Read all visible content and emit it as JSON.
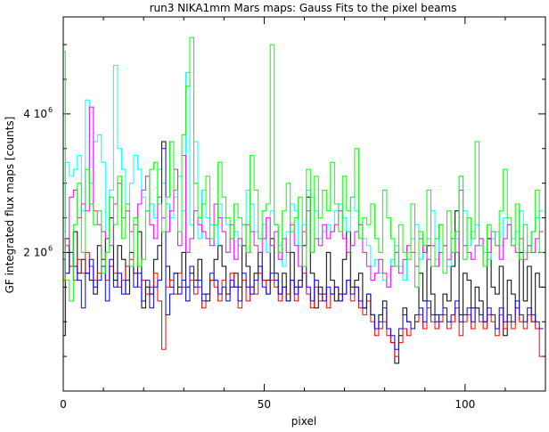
{
  "chart_data": {
    "type": "line",
    "title": "run3 NIKA1mm Mars maps: Gauss Fits to the pixel beams",
    "xlabel": "pixel",
    "ylabel": "GF integrated flux maps [counts]",
    "xlim": [
      0,
      120
    ],
    "ylim": [
      0,
      5400000
    ],
    "step": true,
    "grid": false,
    "x_ticks": [
      0,
      50,
      100
    ],
    "x_tick_labels": [
      "0",
      "50",
      "100"
    ],
    "y_ticks": [
      2000000,
      4000000
    ],
    "y_tick_labels": [
      "2 10",
      "4 10"
    ],
    "y_tick_exponent": "6",
    "series": [
      {
        "color": "#000000",
        "values": [
          800000,
          2200000,
          1800000,
          2300000,
          1700000,
          1900000,
          1700000,
          1600000,
          1400000,
          2100000,
          1900000,
          2200000,
          2500000,
          1600000,
          2100000,
          1900000,
          1400000,
          2000000,
          1700000,
          2300000,
          1200000,
          1500000,
          1400000,
          1900000,
          2100000,
          3600000,
          1800000,
          1500000,
          1700000,
          1500000,
          2000000,
          1500000,
          1700000,
          1600000,
          1900000,
          1400000,
          1300000,
          1600000,
          1900000,
          2100000,
          1800000,
          1400000,
          1500000,
          1700000,
          1500000,
          2100000,
          1800000,
          1500000,
          1700000,
          2000000,
          1600000,
          1600000,
          2200000,
          1700000,
          1400000,
          1700000,
          1300000,
          2000000,
          1500000,
          1600000,
          2100000,
          2800000,
          1700000,
          1200000,
          1500000,
          1400000,
          2000000,
          1600000,
          1300000,
          1400000,
          1900000,
          2300000,
          1500000,
          1600000,
          1700000,
          1200000,
          1400000,
          1100000,
          900000,
          1100000,
          1300000,
          900000,
          700000,
          400000,
          800000,
          1200000,
          1000000,
          900000,
          1000000,
          1700000,
          1300000,
          2100000,
          1400000,
          1100000,
          1000000,
          1400000,
          1300000,
          1800000,
          2600000,
          1100000,
          1700000,
          1600000,
          1200000,
          1500000,
          1300000,
          1000000,
          2200000,
          1500000,
          1400000,
          1800000,
          800000,
          1600000,
          1400000,
          1200000,
          2000000,
          1300000,
          1800000,
          1000000,
          1700000,
          1500000
        ]
      },
      {
        "color": "#00ffff",
        "values": [
          2300000,
          3300000,
          3100000,
          3200000,
          3400000,
          2600000,
          4200000,
          3000000,
          3600000,
          3700000,
          3300000,
          2200000,
          2900000,
          4700000,
          3500000,
          3200000,
          2700000,
          3000000,
          3400000,
          3200000,
          2800000,
          2600000,
          2700000,
          2500000,
          3200000,
          3000000,
          2700000,
          2500000,
          2800000,
          3100000,
          2600000,
          4600000,
          2400000,
          3600000,
          2200000,
          2900000,
          2500000,
          2400000,
          2100000,
          2700000,
          2500000,
          2400000,
          2200000,
          2300000,
          2100000,
          2400000,
          2900000,
          2700000,
          2300000,
          2200000,
          2400000,
          2000000,
          2600000,
          2400000,
          2100000,
          1800000,
          2300000,
          2700000,
          2600000,
          2100000,
          2400000,
          2900000,
          2800000,
          2600000,
          2200000,
          2300000,
          2400000,
          2300000,
          2600000,
          2700000,
          2500000,
          2300000,
          2800000,
          2600000,
          2400000,
          2200000,
          2100000,
          1800000,
          1900000,
          1700000,
          1600000,
          1500000,
          1900000,
          2100000,
          1800000,
          1600000,
          2000000,
          2200000,
          2400000,
          1900000,
          2100000,
          2200000,
          2600000,
          1900000,
          2400000,
          2100000,
          1800000,
          2000000,
          2200000,
          3100000,
          2600000,
          2100000,
          2300000,
          2400000,
          2200000,
          2000000,
          1900000,
          2200000,
          2300000,
          2100000,
          2500000,
          2400000,
          2200000,
          2300000,
          2600000,
          2000000,
          2100000,
          2300000,
          2500000,
          2600000
        ]
      },
      {
        "color": "#ff00ff",
        "values": [
          2200000,
          2100000,
          2800000,
          2900000,
          2500000,
          2700000,
          2600000,
          4100000,
          2600000,
          2400000,
          2300000,
          2200000,
          2100000,
          2700000,
          3000000,
          2500000,
          2600000,
          2300000,
          2400000,
          2700000,
          2900000,
          3100000,
          2400000,
          2200000,
          2800000,
          2500000,
          2300000,
          2600000,
          3200000,
          2100000,
          3400000,
          2000000,
          2200000,
          2600000,
          2400000,
          2300000,
          2200000,
          2100000,
          2700000,
          2500000,
          2300000,
          2000000,
          2400000,
          1900000,
          2200000,
          2100000,
          2400000,
          2300000,
          2100000,
          2000000,
          2200000,
          2500000,
          2100000,
          2300000,
          1900000,
          2200000,
          2000000,
          2400000,
          2100000,
          1800000,
          2300000,
          2600000,
          2000000,
          2200000,
          2100000,
          2400000,
          2200000,
          2300000,
          2400000,
          2600000,
          2200000,
          2000000,
          2100000,
          2300000,
          2400000,
          2000000,
          1800000,
          1600000,
          1700000,
          1900000,
          1700000,
          1500000,
          1800000,
          2000000,
          1700000,
          1900000,
          2100000,
          2000000,
          1800000,
          2200000,
          2000000,
          1900000,
          2100000,
          1800000,
          2000000,
          2100000,
          1900000,
          2200000,
          2000000,
          2900000,
          2100000,
          2000000,
          1900000,
          2100000,
          2200000,
          1800000,
          2000000,
          2300000,
          2100000,
          1900000,
          2200000,
          2400000,
          2100000,
          2000000,
          2200000,
          1900000,
          2100000,
          2000000,
          2200000,
          2300000
        ]
      },
      {
        "color": "#ff0000",
        "values": [
          1600000,
          1700000,
          1800000,
          1600000,
          1900000,
          1700000,
          2000000,
          1800000,
          1600000,
          1700000,
          1900000,
          1600000,
          1800000,
          1700000,
          1500000,
          1600000,
          1800000,
          1900000,
          1700000,
          1500000,
          1600000,
          1400000,
          1500000,
          1700000,
          1300000,
          600000,
          1500000,
          1600000,
          1400000,
          1700000,
          1500000,
          1300000,
          1600000,
          1400000,
          1500000,
          1200000,
          1400000,
          1600000,
          1500000,
          1300000,
          1600000,
          1400000,
          1700000,
          1500000,
          1200000,
          1600000,
          1300000,
          1500000,
          1400000,
          1700000,
          1600000,
          1400000,
          1600000,
          1500000,
          1300000,
          1500000,
          1400000,
          1600000,
          1300000,
          1500000,
          1700000,
          1400000,
          1200000,
          1500000,
          1300000,
          1400000,
          1200000,
          1400000,
          1500000,
          1300000,
          1400000,
          1600000,
          1300000,
          1500000,
          1200000,
          1100000,
          1300000,
          1000000,
          800000,
          900000,
          1000000,
          800000,
          700000,
          500000,
          700000,
          900000,
          800000,
          900000,
          1000000,
          1100000,
          900000,
          1200000,
          1000000,
          900000,
          1000000,
          1100000,
          900000,
          1000000,
          1200000,
          800000,
          1000000,
          1100000,
          900000,
          1200000,
          1000000,
          900000,
          1100000,
          1000000,
          800000,
          1100000,
          900000,
          1000000,
          900000,
          1200000,
          1000000,
          900000,
          1100000,
          1000000,
          900000,
          500000
        ]
      },
      {
        "color": "#0000ff",
        "values": [
          1900000,
          1700000,
          2000000,
          1800000,
          1600000,
          1200000,
          1700000,
          1900000,
          1500000,
          1600000,
          1800000,
          1300000,
          1900000,
          1500000,
          1700000,
          1400000,
          1600000,
          1800000,
          1500000,
          1700000,
          1300000,
          1600000,
          1200000,
          1500000,
          1600000,
          3500000,
          1100000,
          1400000,
          1700000,
          1400000,
          1600000,
          1300000,
          1800000,
          1500000,
          1600000,
          1300000,
          1400000,
          1700000,
          1600000,
          1400000,
          1500000,
          1300000,
          1600000,
          1500000,
          1300000,
          1700000,
          1500000,
          1400000,
          1600000,
          1800000,
          1500000,
          1400000,
          1700000,
          1600000,
          1400000,
          1500000,
          1300000,
          1600000,
          1400000,
          1500000,
          1800000,
          1500000,
          1300000,
          1600000,
          1400000,
          1300000,
          1500000,
          1400000,
          1500000,
          1300000,
          1400000,
          1600000,
          1400000,
          1500000,
          1300000,
          1200000,
          1400000,
          1100000,
          900000,
          1000000,
          1200000,
          900000,
          800000,
          600000,
          900000,
          1100000,
          1000000,
          900000,
          1100000,
          1200000,
          1000000,
          1300000,
          1100000,
          1000000,
          1100000,
          1200000,
          1000000,
          1100000,
          1300000,
          1000000,
          1100000,
          1200000,
          1000000,
          1200000,
          1100000,
          1000000,
          1200000,
          1100000,
          900000,
          1200000,
          1000000,
          1100000,
          1000000,
          1300000,
          1100000,
          1000000,
          1200000,
          1100000,
          1000000,
          900000
        ]
      },
      {
        "color": "#00ff00",
        "values": [
          4900000,
          1600000,
          1300000,
          2400000,
          3000000,
          2000000,
          3200000,
          2700000,
          2400000,
          2600000,
          1700000,
          2000000,
          2800000,
          2400000,
          3100000,
          2200000,
          2700000,
          1800000,
          2500000,
          1800000,
          1900000,
          2600000,
          3200000,
          3300000,
          2700000,
          2300000,
          2800000,
          3600000,
          2900000,
          2300000,
          3700000,
          4400000,
          5100000,
          3000000,
          2500000,
          2700000,
          3100000,
          2200000,
          2400000,
          3300000,
          2800000,
          2500000,
          2200000,
          2700000,
          2500000,
          2400000,
          2000000,
          3400000,
          2900000,
          2200000,
          2600000,
          2700000,
          5000000,
          2400000,
          2000000,
          2600000,
          3000000,
          2300000,
          2500000,
          2800000,
          1800000,
          3200000,
          2000000,
          3100000,
          2500000,
          2900000,
          2600000,
          3300000,
          2700000,
          2300000,
          3100000,
          2600000,
          2800000,
          3500000,
          2200000,
          2500000,
          2400000,
          2700000,
          2200000,
          2000000,
          2900000,
          2500000,
          2200000,
          1800000,
          2400000,
          2000000,
          1900000,
          2700000,
          1500000,
          2300000,
          2100000,
          2900000,
          1800000,
          2200000,
          2400000,
          1700000,
          2600000,
          2000000,
          2300000,
          3100000,
          1900000,
          2500000,
          2200000,
          3600000,
          2100000,
          1800000,
          2400000,
          2300000,
          2100000,
          2600000,
          3200000,
          2500000,
          2100000,
          2700000,
          1900000,
          2400000,
          2000000,
          2300000,
          2900000,
          2000000
        ]
      }
    ]
  }
}
